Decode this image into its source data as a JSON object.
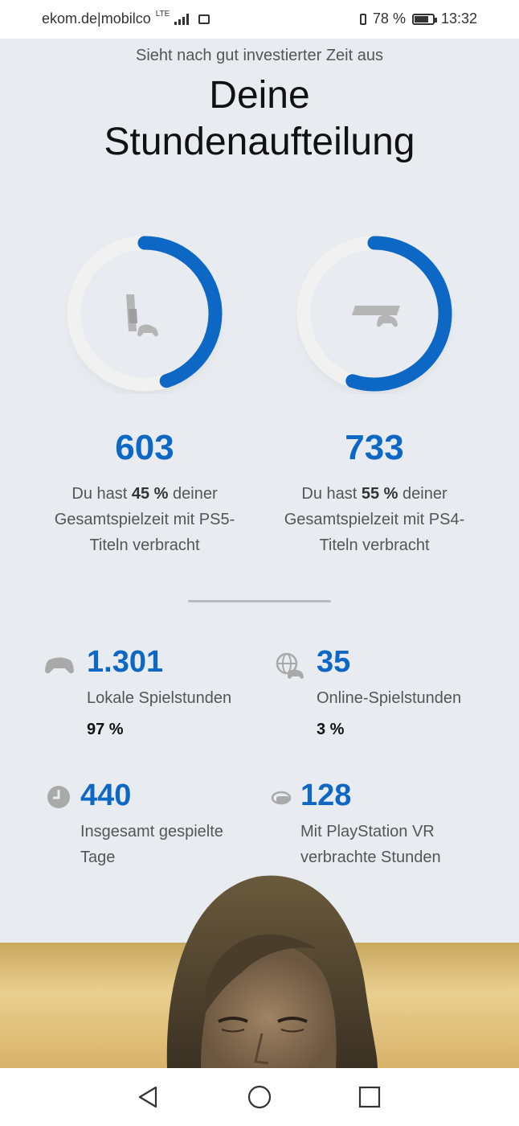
{
  "status_bar": {
    "carrier": "ekom.de|mobilco",
    "network": "LTE",
    "battery": "78 %",
    "battery_level": 0.78,
    "time": "13:32"
  },
  "header": {
    "subtitle": "Sieht nach gut investierter Zeit aus",
    "title_line1": "Deine",
    "title_line2": "Stundenaufteilung"
  },
  "platforms": [
    {
      "id": "ps5",
      "hours": "603",
      "percent": 45,
      "desc_pre": "Du hast ",
      "desc_pct": "45 %",
      "desc_post": " deiner Gesamtspielzeit mit PS5-Titeln verbracht",
      "accent": "#0d67c4"
    },
    {
      "id": "ps4",
      "hours": "733",
      "percent": 55,
      "desc_pre": "Du hast ",
      "desc_pct": "55 %",
      "desc_post": " deiner Gesamtspielzeit mit PS4-Titeln verbracht",
      "accent": "#0d67c4"
    }
  ],
  "stats": {
    "local": {
      "value": "1.301",
      "label": "Lokale Spielstunden",
      "percent": "97 %",
      "icon": "gamepad-icon"
    },
    "online": {
      "value": "35",
      "label": "Online-Spielstunden",
      "percent": "3 %",
      "icon": "globe-gamepad-icon"
    },
    "days": {
      "value": "440",
      "label": "Insgesamt gespielte Tage",
      "icon": "clock-icon"
    },
    "vr": {
      "value": "128",
      "label": "Mit PlayStation VR verbrachte Stunden",
      "icon": "vr-headset-icon"
    }
  },
  "colors": {
    "accent": "#0d67c4",
    "background": "#e8ebef",
    "ring_track": "#f1f1f1"
  }
}
